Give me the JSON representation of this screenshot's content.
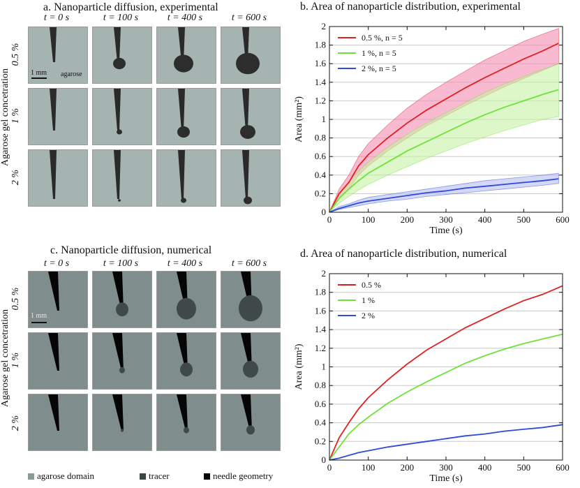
{
  "panel_a": {
    "title": "a. Nanoparticle diffusion, experimental",
    "times": [
      "t = 0 s",
      "t = 100 s",
      "t = 400 s",
      "t = 600 s"
    ],
    "rows": [
      "0.5 %",
      "1 %",
      "2 %"
    ],
    "y_title": "Agarose gel concetration",
    "scale_label": "1 mm",
    "domain_label": "agarose"
  },
  "panel_c": {
    "title": "c. Nanoparticle diffusion, numerical",
    "times": [
      "t = 0 s",
      "t = 100 s",
      "t = 400 s",
      "t = 600 s"
    ],
    "rows": [
      "0.5 %",
      "1 %",
      "2 %"
    ],
    "y_title": "Agarose gel concetration",
    "scale_label": "1 mm"
  },
  "bottom_legend": {
    "items": [
      {
        "label": "agarose domain",
        "color": "#8a9a98"
      },
      {
        "label": "tracer",
        "color": "#3c4644"
      },
      {
        "label": "needle geometry",
        "color": "#000000"
      }
    ]
  },
  "chart_data": [
    {
      "type": "line",
      "title": "b. Area of nanoparticle distribution, experimental",
      "xlabel": "Time (s)",
      "ylabel": "Area (mm²)",
      "xlim": [
        0,
        600
      ],
      "ylim": [
        0,
        2
      ],
      "xticks": [
        "0",
        "100",
        "200",
        "300",
        "400",
        "500",
        "600"
      ],
      "yticks": [
        "0",
        "0.2",
        "0.4",
        "0.6",
        "0.8",
        "1",
        "1.2",
        "1.4",
        "1.6",
        "1.8",
        "2"
      ],
      "grid": "horizontal",
      "legend_position": "top-left",
      "x": [
        0,
        25,
        50,
        75,
        100,
        150,
        200,
        250,
        300,
        350,
        400,
        450,
        500,
        550,
        590
      ],
      "series": [
        {
          "name": "0.5 %, n = 5",
          "color": "#e02020",
          "band_color": "#f48cb0",
          "values": [
            0,
            0.2,
            0.32,
            0.5,
            0.62,
            0.8,
            0.96,
            1.1,
            1.22,
            1.34,
            1.45,
            1.55,
            1.65,
            1.74,
            1.82
          ],
          "lower": [
            0,
            0.15,
            0.25,
            0.4,
            0.5,
            0.66,
            0.8,
            0.93,
            1.04,
            1.15,
            1.25,
            1.35,
            1.44,
            1.53,
            1.6
          ],
          "upper": [
            0,
            0.25,
            0.4,
            0.6,
            0.74,
            0.94,
            1.12,
            1.27,
            1.4,
            1.52,
            1.64,
            1.74,
            1.84,
            1.92,
            1.98
          ]
        },
        {
          "name": "1 %, n = 5",
          "color": "#6ee23a",
          "band_color": "#c8f2a4",
          "values": [
            0,
            0.15,
            0.25,
            0.34,
            0.42,
            0.54,
            0.66,
            0.76,
            0.86,
            0.96,
            1.05,
            1.13,
            1.2,
            1.27,
            1.32
          ],
          "lower": [
            0,
            0.1,
            0.17,
            0.24,
            0.3,
            0.4,
            0.49,
            0.58,
            0.66,
            0.74,
            0.81,
            0.88,
            0.94,
            1.0,
            1.03
          ],
          "upper": [
            0,
            0.2,
            0.33,
            0.44,
            0.54,
            0.7,
            0.84,
            0.96,
            1.07,
            1.18,
            1.29,
            1.38,
            1.46,
            1.54,
            1.6
          ]
        },
        {
          "name": "2 %, n = 5",
          "color": "#2e4ad8",
          "band_color": "#b8bcf0",
          "values": [
            0,
            0.04,
            0.07,
            0.1,
            0.12,
            0.15,
            0.18,
            0.21,
            0.23,
            0.26,
            0.28,
            0.3,
            0.32,
            0.34,
            0.36
          ],
          "lower": [
            0,
            0.03,
            0.05,
            0.07,
            0.09,
            0.12,
            0.14,
            0.17,
            0.19,
            0.21,
            0.23,
            0.25,
            0.27,
            0.29,
            0.31
          ],
          "upper": [
            0,
            0.06,
            0.09,
            0.13,
            0.16,
            0.19,
            0.22,
            0.25,
            0.28,
            0.31,
            0.34,
            0.36,
            0.38,
            0.4,
            0.42
          ]
        }
      ]
    },
    {
      "type": "line",
      "title": "d. Area of nanoparticle distribution, numerical",
      "xlabel": "Time (s)",
      "ylabel": "Area (mm²)",
      "xlim": [
        0,
        600
      ],
      "ylim": [
        0,
        2
      ],
      "xticks": [
        "0",
        "100",
        "200",
        "300",
        "400",
        "500",
        "600"
      ],
      "yticks": [
        "0",
        "0.2",
        "0.4",
        "0.6",
        "0.8",
        "1",
        "1.2",
        "1.4",
        "1.6",
        "1.8",
        "2"
      ],
      "grid": "horizontal",
      "legend_position": "top-left",
      "x": [
        0,
        25,
        50,
        75,
        100,
        150,
        200,
        250,
        300,
        350,
        400,
        450,
        500,
        550,
        600
      ],
      "series": [
        {
          "name": "0.5 %",
          "color": "#e02020",
          "values": [
            0,
            0.24,
            0.4,
            0.55,
            0.67,
            0.86,
            1.03,
            1.18,
            1.3,
            1.42,
            1.52,
            1.62,
            1.71,
            1.78,
            1.87
          ]
        },
        {
          "name": "1 %",
          "color": "#6ee23a",
          "values": [
            0,
            0.14,
            0.28,
            0.38,
            0.46,
            0.61,
            0.73,
            0.84,
            0.94,
            1.04,
            1.12,
            1.19,
            1.25,
            1.3,
            1.35
          ]
        },
        {
          "name": "2 %",
          "color": "#2e4ad8",
          "values": [
            0,
            0.02,
            0.05,
            0.08,
            0.1,
            0.14,
            0.17,
            0.2,
            0.23,
            0.26,
            0.28,
            0.31,
            0.33,
            0.35,
            0.38
          ]
        }
      ]
    }
  ]
}
